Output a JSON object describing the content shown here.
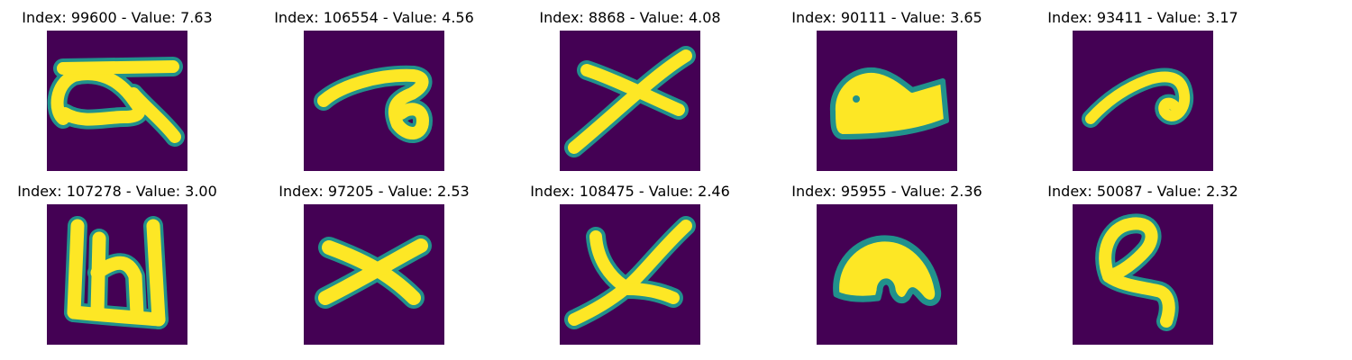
{
  "figure": {
    "panels": [
      {
        "title": "Index: 99600 - Value: 7.63",
        "glyph": "glyph-loop-hook"
      },
      {
        "title": "Index: 106554 - Value: 4.56",
        "glyph": "glyph-curl-hook"
      },
      {
        "title": "Index: 8868 - Value: 4.08",
        "glyph": "glyph-cross-x"
      },
      {
        "title": "Index: 90111 - Value: 3.65",
        "glyph": "glyph-filled-blob"
      },
      {
        "title": "Index: 93411 - Value: 3.17",
        "glyph": "glyph-curl-small"
      },
      {
        "title": "Index: 107278 - Value: 3.00",
        "glyph": "glyph-double-column"
      },
      {
        "title": "Index: 97205 - Value: 2.53",
        "glyph": "glyph-cross-small"
      },
      {
        "title": "Index: 108475 - Value: 2.46",
        "glyph": "glyph-cross-x"
      },
      {
        "title": "Index: 95955 - Value: 2.36",
        "glyph": "glyph-arch-blob"
      },
      {
        "title": "Index: 50087 - Value: 2.32",
        "glyph": "glyph-loop-tail"
      }
    ],
    "colors": {
      "background": "#440154",
      "stroke": "#fde725",
      "edge": "#21918c"
    }
  }
}
